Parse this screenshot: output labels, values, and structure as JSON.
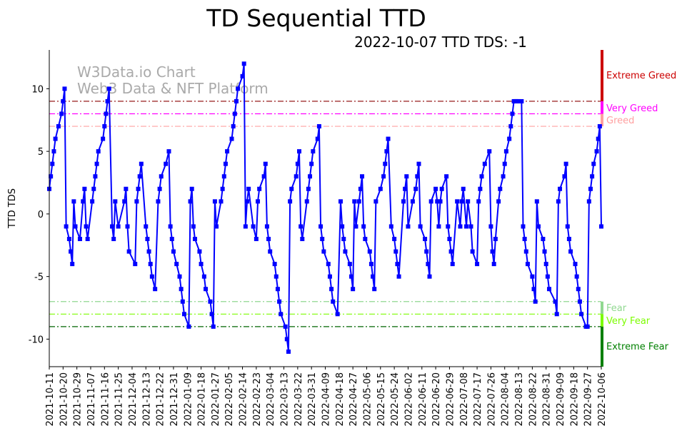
{
  "chart_data": {
    "type": "line",
    "title": "TD Sequential TTD",
    "subtitle": "2022-10-07 TTD TDS: -1",
    "ylabel": "TTD TDS",
    "xlabel": "",
    "watermark": [
      "W3Data.io Chart",
      "Web3 Data & NFT Platform"
    ],
    "start_date": "2021-10-11",
    "end_date": "2022-10-06",
    "ylim": [
      -12.2,
      13.1
    ],
    "xlim_days": [
      0,
      360
    ],
    "yticks": [
      -10,
      -5,
      0,
      5,
      10
    ],
    "xtick_labels": [
      "2021-10-11",
      "2021-10-20",
      "2021-10-29",
      "2021-11-07",
      "2021-11-16",
      "2021-11-25",
      "2021-12-04",
      "2021-12-13",
      "2021-12-22",
      "2021-12-31",
      "2022-01-09",
      "2022-01-18",
      "2022-01-27",
      "2022-02-05",
      "2022-02-14",
      "2022-02-23",
      "2022-03-04",
      "2022-03-13",
      "2022-03-22",
      "2022-03-31",
      "2022-04-09",
      "2022-04-18",
      "2022-04-27",
      "2022-05-06",
      "2022-05-15",
      "2022-05-24",
      "2022-06-02",
      "2022-06-11",
      "2022-06-20",
      "2022-06-29",
      "2022-07-08",
      "2022-07-17",
      "2022-07-26",
      "2022-08-04",
      "2022-08-13",
      "2022-08-22",
      "2022-08-31",
      "2022-09-09",
      "2022-09-18",
      "2022-09-27",
      "2022-10-06"
    ],
    "series": [
      {
        "name": "TTD TDS",
        "color": "#0000ff",
        "points": [
          [
            0,
            2
          ],
          [
            1,
            3
          ],
          [
            2,
            4
          ],
          [
            3,
            5
          ],
          [
            4,
            6
          ],
          [
            6,
            7
          ],
          [
            8,
            8
          ],
          [
            9,
            9
          ],
          [
            10,
            10
          ],
          [
            11,
            -1
          ],
          [
            13,
            -2
          ],
          [
            14,
            -3
          ],
          [
            15,
            -4
          ],
          [
            16,
            1
          ],
          [
            17,
            -1
          ],
          [
            20,
            -2
          ],
          [
            22,
            1
          ],
          [
            23,
            2
          ],
          [
            24,
            -1
          ],
          [
            25,
            -2
          ],
          [
            28,
            1
          ],
          [
            29,
            2
          ],
          [
            30,
            3
          ],
          [
            31,
            4
          ],
          [
            32,
            5
          ],
          [
            35,
            6
          ],
          [
            36,
            7
          ],
          [
            37,
            8
          ],
          [
            38,
            9
          ],
          [
            39,
            10
          ],
          [
            41,
            -1
          ],
          [
            42,
            -2
          ],
          [
            43,
            1
          ],
          [
            45,
            -1
          ],
          [
            49,
            1
          ],
          [
            50,
            2
          ],
          [
            51,
            -1
          ],
          [
            52,
            -3
          ],
          [
            56,
            -4
          ],
          [
            57,
            1
          ],
          [
            58,
            2
          ],
          [
            59,
            3
          ],
          [
            60,
            4
          ],
          [
            63,
            -1
          ],
          [
            64,
            -2
          ],
          [
            65,
            -3
          ],
          [
            66,
            -4
          ],
          [
            67,
            -5
          ],
          [
            69,
            -6
          ],
          [
            71,
            1
          ],
          [
            72,
            2
          ],
          [
            73,
            3
          ],
          [
            76,
            4
          ],
          [
            78,
            5
          ],
          [
            79,
            -1
          ],
          [
            80,
            -2
          ],
          [
            81,
            -3
          ],
          [
            83,
            -4
          ],
          [
            85,
            -5
          ],
          [
            86,
            -6
          ],
          [
            87,
            -7
          ],
          [
            88,
            -8
          ],
          [
            91,
            -9
          ],
          [
            92,
            1
          ],
          [
            93,
            2
          ],
          [
            94,
            -1
          ],
          [
            95,
            -2
          ],
          [
            98,
            -3
          ],
          [
            99,
            -4
          ],
          [
            101,
            -5
          ],
          [
            102,
            -6
          ],
          [
            105,
            -7
          ],
          [
            106,
            -8
          ],
          [
            107,
            -9
          ],
          [
            108,
            1
          ],
          [
            109,
            -1
          ],
          [
            112,
            1
          ],
          [
            113,
            2
          ],
          [
            114,
            3
          ],
          [
            115,
            4
          ],
          [
            116,
            5
          ],
          [
            119,
            6
          ],
          [
            120,
            7
          ],
          [
            121,
            8
          ],
          [
            122,
            9
          ],
          [
            123,
            10
          ],
          [
            126,
            11
          ],
          [
            127,
            12
          ],
          [
            128,
            -1
          ],
          [
            129,
            1
          ],
          [
            130,
            2
          ],
          [
            133,
            -1
          ],
          [
            135,
            -2
          ],
          [
            136,
            1
          ],
          [
            137,
            2
          ],
          [
            140,
            3
          ],
          [
            141,
            4
          ],
          [
            142,
            -1
          ],
          [
            143,
            -2
          ],
          [
            144,
            -3
          ],
          [
            147,
            -4
          ],
          [
            148,
            -5
          ],
          [
            149,
            -6
          ],
          [
            150,
            -7
          ],
          [
            151,
            -8
          ],
          [
            154,
            -9
          ],
          [
            155,
            -10
          ],
          [
            156,
            -11
          ],
          [
            157,
            1
          ],
          [
            158,
            2
          ],
          [
            161,
            3
          ],
          [
            162,
            4
          ],
          [
            163,
            5
          ],
          [
            164,
            -1
          ],
          [
            165,
            -2
          ],
          [
            168,
            1
          ],
          [
            169,
            2
          ],
          [
            170,
            3
          ],
          [
            171,
            4
          ],
          [
            172,
            5
          ],
          [
            175,
            6
          ],
          [
            176,
            7
          ],
          [
            177,
            -1
          ],
          [
            178,
            -2
          ],
          [
            179,
            -3
          ],
          [
            182,
            -4
          ],
          [
            183,
            -5
          ],
          [
            184,
            -6
          ],
          [
            185,
            -7
          ],
          [
            188,
            -8
          ],
          [
            190,
            1
          ],
          [
            191,
            -1
          ],
          [
            192,
            -2
          ],
          [
            193,
            -3
          ],
          [
            196,
            -4
          ],
          [
            197,
            -5
          ],
          [
            198,
            -6
          ],
          [
            199,
            1
          ],
          [
            200,
            -1
          ],
          [
            202,
            1
          ],
          [
            203,
            2
          ],
          [
            204,
            3
          ],
          [
            205,
            -1
          ],
          [
            206,
            -2
          ],
          [
            209,
            -3
          ],
          [
            210,
            -4
          ],
          [
            211,
            -5
          ],
          [
            212,
            -6
          ],
          [
            213,
            1
          ],
          [
            216,
            2
          ],
          [
            218,
            3
          ],
          [
            219,
            4
          ],
          [
            220,
            5
          ],
          [
            221,
            6
          ],
          [
            223,
            -1
          ],
          [
            225,
            -2
          ],
          [
            226,
            -3
          ],
          [
            227,
            -4
          ],
          [
            228,
            -5
          ],
          [
            231,
            1
          ],
          [
            232,
            2
          ],
          [
            233,
            3
          ],
          [
            234,
            -1
          ],
          [
            237,
            1
          ],
          [
            239,
            2
          ],
          [
            240,
            3
          ],
          [
            241,
            4
          ],
          [
            242,
            -1
          ],
          [
            245,
            -2
          ],
          [
            246,
            -3
          ],
          [
            247,
            -4
          ],
          [
            248,
            -5
          ],
          [
            249,
            1
          ],
          [
            252,
            2
          ],
          [
            253,
            1
          ],
          [
            254,
            -1
          ],
          [
            255,
            1
          ],
          [
            256,
            2
          ],
          [
            259,
            3
          ],
          [
            260,
            -1
          ],
          [
            261,
            -2
          ],
          [
            262,
            -3
          ],
          [
            263,
            -4
          ],
          [
            266,
            1
          ],
          [
            268,
            -1
          ],
          [
            269,
            1
          ],
          [
            270,
            2
          ],
          [
            272,
            -1
          ],
          [
            273,
            1
          ],
          [
            275,
            -1
          ],
          [
            276,
            -3
          ],
          [
            279,
            -4
          ],
          [
            280,
            1
          ],
          [
            281,
            2
          ],
          [
            282,
            3
          ],
          [
            284,
            4
          ],
          [
            287,
            5
          ],
          [
            288,
            -1
          ],
          [
            289,
            -3
          ],
          [
            290,
            -4
          ],
          [
            291,
            -2
          ],
          [
            293,
            1
          ],
          [
            294,
            2
          ],
          [
            296,
            3
          ],
          [
            297,
            4
          ],
          [
            298,
            5
          ],
          [
            300,
            6
          ],
          [
            301,
            7
          ],
          [
            302,
            8
          ],
          [
            303,
            9
          ],
          [
            304,
            9
          ],
          [
            305,
            9
          ],
          [
            306,
            9
          ],
          [
            308,
            9
          ],
          [
            309,
            -1
          ],
          [
            310,
            -2
          ],
          [
            311,
            -3
          ],
          [
            312,
            -4
          ],
          [
            315,
            -5
          ],
          [
            316,
            -6
          ],
          [
            317,
            -7
          ],
          [
            318,
            1
          ],
          [
            319,
            -1
          ],
          [
            322,
            -2
          ],
          [
            323,
            -3
          ],
          [
            324,
            -4
          ],
          [
            325,
            -5
          ],
          [
            326,
            -6
          ],
          [
            330,
            -7
          ],
          [
            331,
            -8
          ],
          [
            332,
            1
          ],
          [
            333,
            2
          ],
          [
            336,
            3
          ],
          [
            337,
            4
          ],
          [
            338,
            -1
          ],
          [
            339,
            -2
          ],
          [
            340,
            -3
          ],
          [
            343,
            -4
          ],
          [
            344,
            -5
          ],
          [
            345,
            -6
          ],
          [
            346,
            -7
          ],
          [
            347,
            -8
          ],
          [
            350,
            -9
          ],
          [
            351,
            -9
          ],
          [
            352,
            1
          ],
          [
            353,
            2
          ],
          [
            354,
            3
          ],
          [
            355,
            4
          ],
          [
            357,
            5
          ],
          [
            358,
            6
          ],
          [
            359,
            7
          ],
          [
            360,
            -1
          ]
        ]
      }
    ],
    "thresholds": [
      {
        "label": "Extreme Greed",
        "value": 9,
        "color": "#cc0000",
        "line": "#8b0000",
        "band": [
          9,
          13.1
        ]
      },
      {
        "label": "Very Greed",
        "value": 8,
        "color": "#ff00ff",
        "line": "#ff00ff",
        "band": [
          8,
          9
        ]
      },
      {
        "label": "Greed",
        "value": 7,
        "color": "#ffa0a0",
        "line": "#ffa0a0",
        "band": [
          7,
          8
        ]
      },
      {
        "label": "Fear",
        "value": -7,
        "color": "#90d890",
        "line": "#90d890",
        "band": [
          -8,
          -7
        ]
      },
      {
        "label": "Very Fear",
        "value": -8,
        "color": "#7cfc00",
        "line": "#7cfc00",
        "band": [
          -9,
          -8
        ]
      },
      {
        "label": "Extreme Fear",
        "value": -9,
        "color": "#008000",
        "line": "#006400",
        "band": [
          -12.2,
          -9
        ]
      }
    ]
  }
}
